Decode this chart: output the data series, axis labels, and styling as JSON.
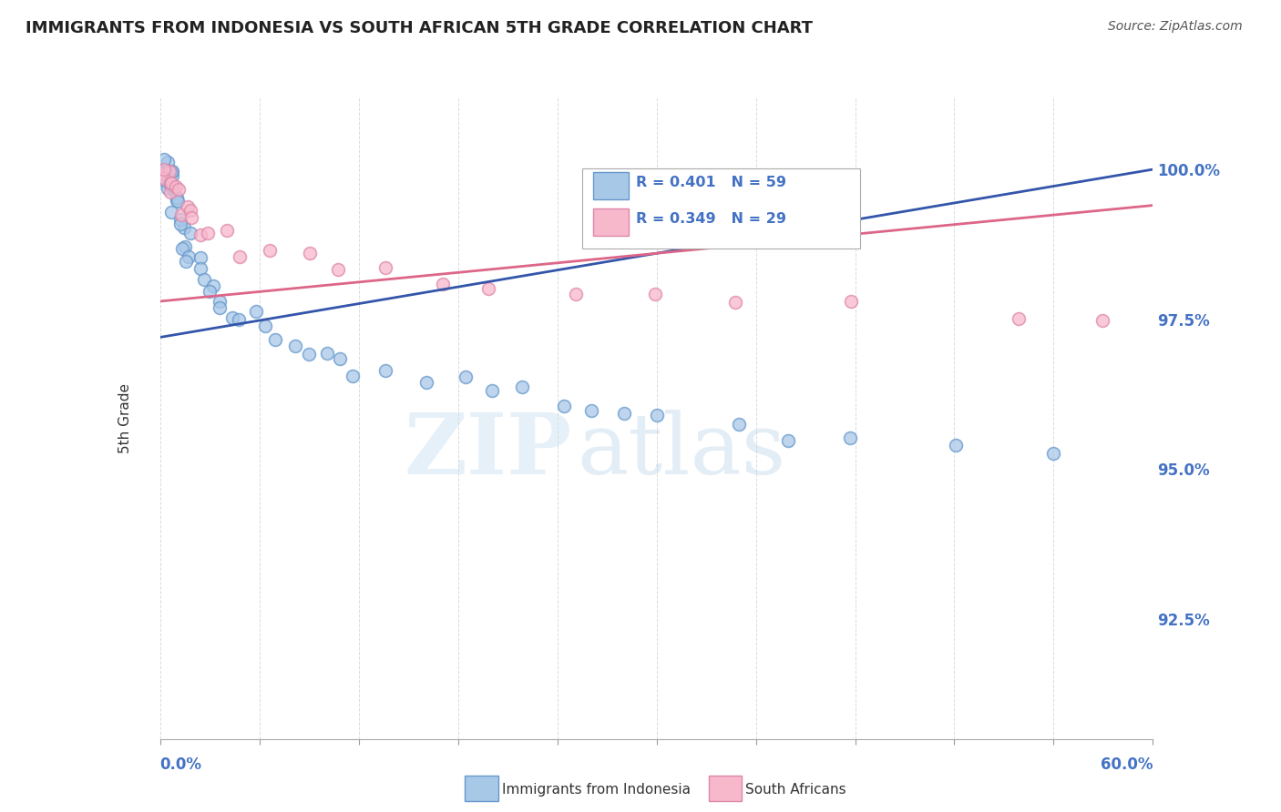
{
  "title": "IMMIGRANTS FROM INDONESIA VS SOUTH AFRICAN 5TH GRADE CORRELATION CHART",
  "source": "Source: ZipAtlas.com",
  "ylabel": "5th Grade",
  "ylabel_right_labels": [
    "100.0%",
    "97.5%",
    "95.0%",
    "92.5%"
  ],
  "ylabel_right_values": [
    1.0,
    0.975,
    0.95,
    0.925
  ],
  "xlim": [
    0.0,
    0.6
  ],
  "ylim": [
    0.905,
    1.012
  ],
  "legend_label1": "R = 0.401   N = 59",
  "legend_label2": "R = 0.349   N = 29",
  "legend_series1": "Immigrants from Indonesia",
  "legend_series2": "South Africans",
  "color_blue": "#a8c8e8",
  "color_pink": "#f8b8cc",
  "trendline_blue": "#3355aa",
  "trendline_pink": "#dd6688",
  "blue_x": [
    0.001,
    0.002,
    0.003,
    0.003,
    0.004,
    0.004,
    0.005,
    0.005,
    0.005,
    0.006,
    0.006,
    0.007,
    0.007,
    0.008,
    0.008,
    0.009,
    0.009,
    0.01,
    0.01,
    0.01,
    0.011,
    0.012,
    0.013,
    0.014,
    0.015,
    0.016,
    0.018,
    0.02,
    0.022,
    0.025,
    0.028,
    0.03,
    0.033,
    0.035,
    0.04,
    0.045,
    0.05,
    0.055,
    0.06,
    0.07,
    0.08,
    0.09,
    0.1,
    0.11,
    0.12,
    0.14,
    0.16,
    0.18,
    0.2,
    0.22,
    0.24,
    0.26,
    0.28,
    0.3,
    0.35,
    0.38,
    0.42,
    0.48,
    0.54
  ],
  "blue_y": [
    1.0,
    1.0,
    1.0,
    1.0,
    1.0,
    1.0,
    1.0,
    1.0,
    1.0,
    1.0,
    0.998,
    0.998,
    0.997,
    0.997,
    0.996,
    0.996,
    0.995,
    0.995,
    0.994,
    0.993,
    0.992,
    0.991,
    0.99,
    0.989,
    0.988,
    0.987,
    0.986,
    0.985,
    0.984,
    0.982,
    0.981,
    0.98,
    0.979,
    0.978,
    0.977,
    0.976,
    0.975,
    0.974,
    0.973,
    0.972,
    0.971,
    0.97,
    0.969,
    0.968,
    0.967,
    0.966,
    0.965,
    0.964,
    0.963,
    0.962,
    0.961,
    0.96,
    0.959,
    0.958,
    0.957,
    0.956,
    0.955,
    0.954,
    0.953
  ],
  "pink_x": [
    0.001,
    0.002,
    0.003,
    0.004,
    0.005,
    0.006,
    0.007,
    0.008,
    0.01,
    0.012,
    0.015,
    0.018,
    0.02,
    0.025,
    0.03,
    0.04,
    0.05,
    0.07,
    0.09,
    0.11,
    0.14,
    0.17,
    0.2,
    0.25,
    0.3,
    0.35,
    0.42,
    0.52,
    0.57
  ],
  "pink_y": [
    1.0,
    1.0,
    1.0,
    1.0,
    0.998,
    0.998,
    0.997,
    0.996,
    0.995,
    0.994,
    0.993,
    0.992,
    0.991,
    0.99,
    0.989,
    0.988,
    0.987,
    0.986,
    0.985,
    0.984,
    0.983,
    0.982,
    0.981,
    0.98,
    0.979,
    0.978,
    0.977,
    0.976,
    0.975
  ],
  "blue_trend": [
    0.0,
    0.6,
    0.972,
    1.0
  ],
  "pink_trend": [
    0.0,
    0.6,
    0.978,
    0.994
  ],
  "watermark_zip": "ZIP",
  "watermark_atlas": "atlas",
  "background_color": "#ffffff",
  "grid_color": "#cccccc",
  "title_color": "#222222",
  "axis_label_color": "#4472c4",
  "marker_size": 100
}
